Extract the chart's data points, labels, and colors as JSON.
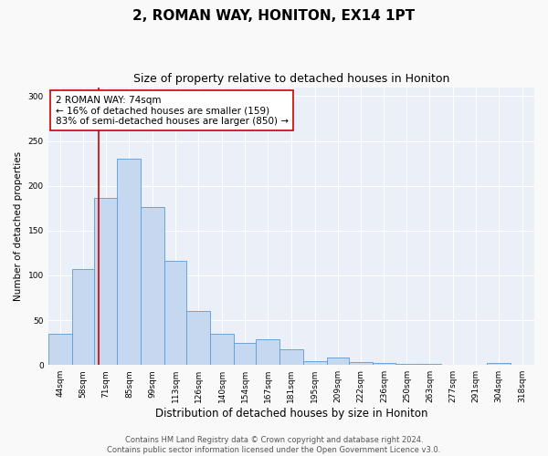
{
  "title": "2, ROMAN WAY, HONITON, EX14 1PT",
  "subtitle": "Size of property relative to detached houses in Honiton",
  "xlabel": "Distribution of detached houses by size in Honiton",
  "ylabel": "Number of detached properties",
  "bin_labels": [
    "44sqm",
    "58sqm",
    "71sqm",
    "85sqm",
    "99sqm",
    "113sqm",
    "126sqm",
    "140sqm",
    "154sqm",
    "167sqm",
    "181sqm",
    "195sqm",
    "209sqm",
    "222sqm",
    "236sqm",
    "250sqm",
    "263sqm",
    "277sqm",
    "291sqm",
    "304sqm",
    "318sqm"
  ],
  "bar_heights": [
    35,
    107,
    186,
    230,
    176,
    116,
    60,
    35,
    25,
    29,
    18,
    4,
    8,
    3,
    2,
    1,
    1,
    0,
    0,
    2,
    0
  ],
  "bar_color": "#c5d8f0",
  "bar_edge_color": "#5b9bd5",
  "property_line_x": 74,
  "property_line_label": "2 ROMAN WAY: 74sqm",
  "annotation_line1": "← 16% of detached houses are smaller (159)",
  "annotation_line2": "83% of semi-detached houses are larger (850) →",
  "annotation_box_color": "#ffffff",
  "annotation_box_edge": "#cc0000",
  "vline_color": "#cc0000",
  "ylim": [
    0,
    310
  ],
  "fig_bg_color": "#f9f9f9",
  "plot_bg_color": "#eaeff8",
  "footer_line1": "Contains HM Land Registry data © Crown copyright and database right 2024.",
  "footer_line2": "Contains public sector information licensed under the Open Government Licence v3.0.",
  "title_fontsize": 11,
  "subtitle_fontsize": 9,
  "xlabel_fontsize": 8.5,
  "ylabel_fontsize": 7.5,
  "tick_fontsize": 6.5,
  "footer_fontsize": 6,
  "annotation_fontsize": 7.5
}
